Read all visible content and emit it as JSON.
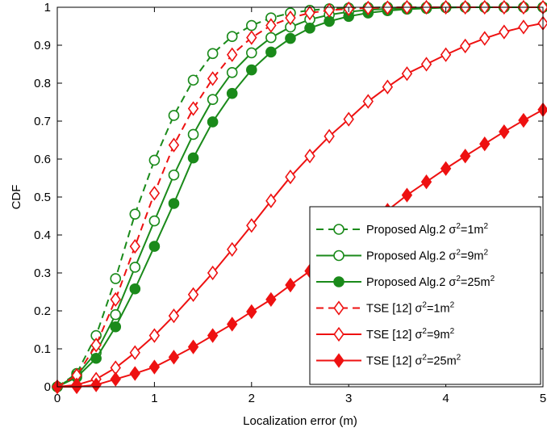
{
  "chart_data": {
    "type": "line",
    "xlabel": "Localization error (m)",
    "ylabel": "CDF",
    "xlim": [
      0,
      5
    ],
    "ylim": [
      0,
      1
    ],
    "xticks": [
      "0",
      "1",
      "2",
      "3",
      "4",
      "5"
    ],
    "yticks": [
      "0",
      "0.1",
      "0.2",
      "0.3",
      "0.4",
      "0.5",
      "0.6",
      "0.7",
      "0.8",
      "0.9",
      "1"
    ],
    "grid": false,
    "legend_position": "bottom-right",
    "x": [
      0,
      0.2,
      0.4,
      0.6,
      0.8,
      1.0,
      1.2,
      1.4,
      1.6,
      1.8,
      2.0,
      2.2,
      2.4,
      2.6,
      2.8,
      3.0,
      3.2,
      3.4,
      3.6,
      3.8,
      4.0,
      4.2,
      4.4,
      4.6,
      4.8,
      5.0
    ],
    "series": [
      {
        "name": "Proposed Alg.2 σ²=1m²",
        "legend_main": "Proposed Alg.2 σ",
        "legend_sup1": "2",
        "legend_mid": "=1m",
        "legend_sup2": "2",
        "color": "#1a8a1a",
        "dashed": true,
        "marker": "circle-open",
        "values": [
          0.0,
          0.035,
          0.135,
          0.285,
          0.455,
          0.597,
          0.715,
          0.808,
          0.878,
          0.923,
          0.952,
          0.972,
          0.985,
          0.992,
          0.996,
          0.998,
          0.999,
          1.0,
          1.0,
          1.0,
          1.0,
          1.0,
          1.0,
          1.0,
          1.0,
          1.0
        ]
      },
      {
        "name": "Proposed Alg.2 σ²=9m²",
        "legend_main": "Proposed Alg.2 σ",
        "legend_sup1": "2",
        "legend_mid": "=9m",
        "legend_sup2": "2",
        "color": "#1a8a1a",
        "dashed": false,
        "marker": "circle-open",
        "values": [
          0.0,
          0.03,
          0.09,
          0.19,
          0.315,
          0.437,
          0.558,
          0.665,
          0.757,
          0.828,
          0.88,
          0.92,
          0.948,
          0.968,
          0.98,
          0.988,
          0.993,
          0.996,
          0.998,
          0.999,
          1.0,
          1.0,
          1.0,
          1.0,
          1.0,
          1.0
        ]
      },
      {
        "name": "Proposed Alg.2 σ²=25m²",
        "legend_main": "Proposed Alg.2 σ",
        "legend_sup1": "2",
        "legend_mid": "=25m",
        "legend_sup2": "2",
        "color": "#1a8a1a",
        "dashed": false,
        "marker": "circle-filled",
        "values": [
          0.0,
          0.025,
          0.075,
          0.158,
          0.258,
          0.37,
          0.483,
          0.603,
          0.698,
          0.773,
          0.835,
          0.882,
          0.918,
          0.945,
          0.963,
          0.976,
          0.985,
          0.991,
          0.995,
          0.997,
          0.999,
          1.0,
          1.0,
          1.0,
          1.0,
          1.0
        ]
      },
      {
        "name": "TSE [12] σ²=1m²",
        "legend_main": "TSE [12] σ",
        "legend_sup1": "2",
        "legend_mid": "=1m",
        "legend_sup2": "2",
        "color": "#ee1111",
        "dashed": true,
        "marker": "diamond-open",
        "values": [
          0.0,
          0.03,
          0.11,
          0.23,
          0.37,
          0.51,
          0.637,
          0.733,
          0.812,
          0.875,
          0.92,
          0.952,
          0.972,
          0.985,
          0.992,
          0.996,
          0.998,
          0.999,
          1.0,
          1.0,
          1.0,
          1.0,
          1.0,
          1.0,
          1.0,
          1.0
        ]
      },
      {
        "name": "TSE [12] σ²=9m²",
        "legend_main": "TSE [12] σ",
        "legend_sup1": "2",
        "legend_mid": "=9m",
        "legend_sup2": "2",
        "color": "#ee1111",
        "dashed": false,
        "marker": "diamond-open",
        "values": [
          0.0,
          0.005,
          0.02,
          0.05,
          0.09,
          0.135,
          0.187,
          0.243,
          0.3,
          0.362,
          0.425,
          0.49,
          0.553,
          0.608,
          0.66,
          0.705,
          0.752,
          0.79,
          0.825,
          0.85,
          0.875,
          0.898,
          0.918,
          0.935,
          0.948,
          0.958
        ]
      },
      {
        "name": "TSE [12] σ²=25m²",
        "legend_main": "TSE [12] σ",
        "legend_sup1": "2",
        "legend_mid": "=25m",
        "legend_sup2": "2",
        "color": "#ee1111",
        "dashed": false,
        "marker": "diamond-filled",
        "values": [
          0.0,
          0.0,
          0.005,
          0.02,
          0.035,
          0.052,
          0.078,
          0.105,
          0.135,
          0.165,
          0.198,
          0.23,
          0.268,
          0.305,
          0.342,
          0.38,
          0.42,
          0.465,
          0.505,
          0.54,
          0.575,
          0.608,
          0.64,
          0.672,
          0.702,
          0.73
        ]
      }
    ]
  }
}
